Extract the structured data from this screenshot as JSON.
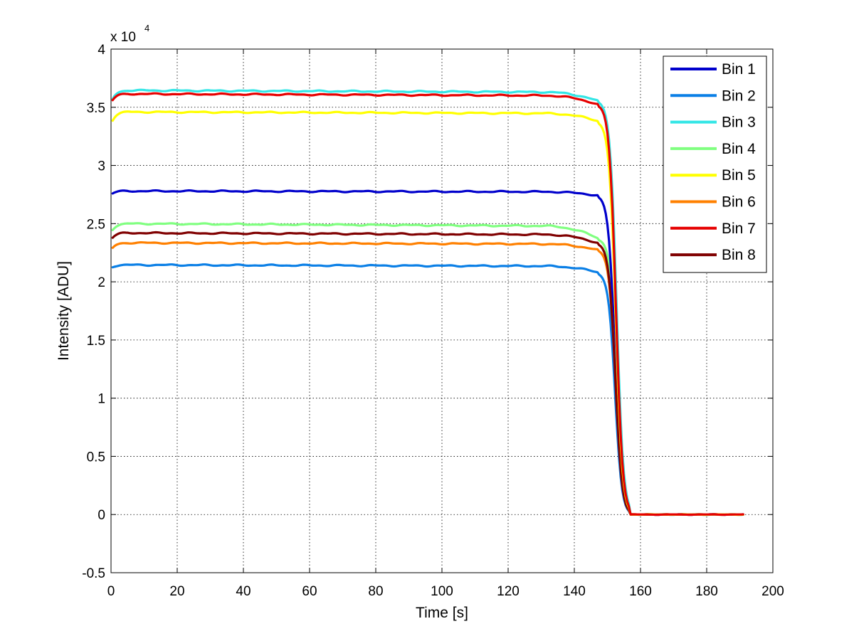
{
  "chart_data": {
    "type": "line",
    "title": "",
    "xlabel": "Time [s]",
    "ylabel": "Intensity [ADU]",
    "xlim": [
      0,
      200
    ],
    "ylim": [
      -5000,
      40000
    ],
    "xticks": [
      0,
      20,
      40,
      60,
      80,
      100,
      120,
      140,
      160,
      180,
      200
    ],
    "yticks": [
      -5000,
      0,
      5000,
      10000,
      15000,
      20000,
      25000,
      30000,
      35000,
      40000
    ],
    "ytick_labels": [
      "-0.5",
      "0",
      "0.5",
      "1",
      "1.5",
      "2",
      "2.5",
      "3",
      "3.5",
      "4"
    ],
    "y_scale_base": "x 10",
    "y_scale_exponent": "4",
    "grid": true,
    "legend_position": "top-right",
    "series": [
      {
        "name": "Bin 1",
        "color": "#0000cc",
        "plateau": 27800,
        "start": 27600,
        "knee": 27400,
        "x_end": 152.3,
        "min": 0
      },
      {
        "name": "Bin 2",
        "color": "#0a7fe6",
        "plateau": 21450,
        "start": 21300,
        "knee": 20800,
        "x_end": 152.3,
        "min": 0
      },
      {
        "name": "Bin 3",
        "color": "#33e6e6",
        "plateau": 36450,
        "start": 35700,
        "knee": 35500,
        "x_end": 152.8,
        "min": 0
      },
      {
        "name": "Bin 4",
        "color": "#80ff80",
        "plateau": 25000,
        "start": 24500,
        "knee": 23700,
        "x_end": 152.8,
        "min": 0
      },
      {
        "name": "Bin 5",
        "color": "#ffff00",
        "plateau": 34600,
        "start": 33900,
        "knee": 33800,
        "x_end": 152.5,
        "min": 0
      },
      {
        "name": "Bin 6",
        "color": "#ff8000",
        "plateau": 23350,
        "start": 22900,
        "knee": 22700,
        "x_end": 152.5,
        "min": 0
      },
      {
        "name": "Bin 7",
        "color": "#e60000",
        "plateau": 36150,
        "start": 35600,
        "knee": 35200,
        "x_end": 152.6,
        "min": 0
      },
      {
        "name": "Bin 8",
        "color": "#800000",
        "plateau": 24200,
        "start": 23800,
        "knee": 23300,
        "x_end": 152.4,
        "min": 0
      }
    ],
    "x_range": [
      0.5,
      191
    ]
  }
}
